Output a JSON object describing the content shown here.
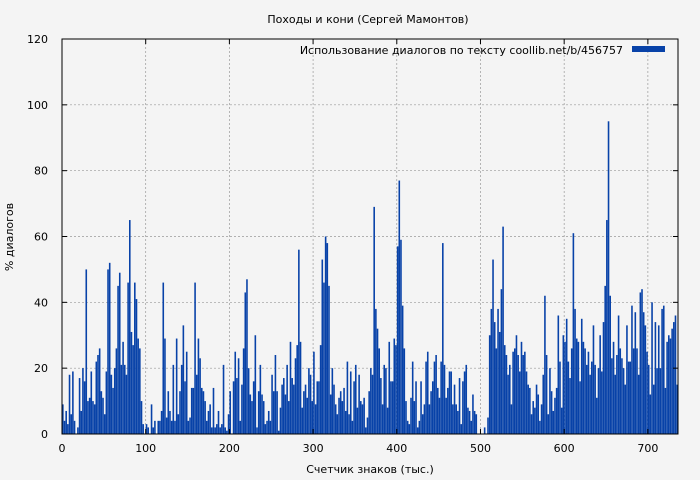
{
  "chart_data": {
    "type": "bar",
    "title": "Походы и кони (Сергей Мамонтов)",
    "xlabel": "Счетчик знаков (тыс.)",
    "ylabel": "% диалогов",
    "xlim": [
      0,
      736
    ],
    "ylim": [
      0,
      120
    ],
    "xticks": [
      "0",
      "100",
      "200",
      "300",
      "400",
      "500",
      "600",
      "700"
    ],
    "yticks": [
      "0",
      "20",
      "40",
      "60",
      "80",
      "100",
      "120"
    ],
    "grid": true,
    "legend": "top-right",
    "colors": {
      "bar": "#0842a8",
      "background": "#f4f4f4",
      "grid": "#999999"
    },
    "series": [
      {
        "name": "Использование диалогов по тексту  coollib.net/b/456757",
        "x": [
          1,
          3,
          5,
          7,
          9,
          11,
          13,
          15,
          17,
          19,
          21,
          23,
          25,
          27,
          29,
          31,
          33,
          35,
          37,
          39,
          41,
          43,
          45,
          47,
          49,
          51,
          53,
          55,
          57,
          59,
          61,
          63,
          65,
          67,
          69,
          71,
          73,
          75,
          77,
          79,
          81,
          83,
          85,
          87,
          89,
          91,
          93,
          95,
          97,
          99,
          101,
          103,
          105,
          107,
          109,
          111,
          113,
          115,
          117,
          119,
          121,
          123,
          125,
          127,
          129,
          131,
          133,
          135,
          137,
          139,
          141,
          143,
          145,
          147,
          149,
          151,
          153,
          155,
          157,
          159,
          161,
          163,
          165,
          167,
          169,
          171,
          173,
          175,
          177,
          179,
          181,
          183,
          185,
          187,
          189,
          191,
          193,
          195,
          197,
          199,
          201,
          203,
          205,
          207,
          209,
          211,
          213,
          215,
          217,
          219,
          221,
          223,
          225,
          227,
          229,
          231,
          233,
          235,
          237,
          239,
          241,
          243,
          245,
          247,
          249,
          251,
          253,
          255,
          257,
          259,
          261,
          263,
          265,
          267,
          269,
          271,
          273,
          275,
          277,
          279,
          281,
          283,
          285,
          287,
          289,
          291,
          293,
          295,
          297,
          299,
          301,
          303,
          305,
          307,
          309,
          311,
          313,
          315,
          317,
          319,
          321,
          323,
          325,
          327,
          329,
          331,
          333,
          335,
          337,
          339,
          341,
          343,
          345,
          347,
          349,
          351,
          353,
          355,
          357,
          359,
          361,
          363,
          365,
          367,
          369,
          371,
          373,
          375,
          377,
          379,
          381,
          383,
          385,
          387,
          389,
          391,
          393,
          395,
          397,
          399,
          401,
          403,
          405,
          407,
          409,
          411,
          413,
          415,
          417,
          419,
          421,
          423,
          425,
          427,
          429,
          431,
          433,
          435,
          437,
          439,
          441,
          443,
          445,
          447,
          449,
          451,
          453,
          455,
          457,
          459,
          461,
          463,
          465,
          467,
          469,
          471,
          473,
          475,
          477,
          479,
          481,
          483,
          485,
          487,
          489,
          491,
          493,
          495,
          497,
          499,
          501,
          503,
          505,
          507,
          509,
          511,
          513,
          515,
          517,
          519,
          521,
          523,
          525,
          527,
          529,
          531,
          533,
          535,
          537,
          539,
          541,
          543,
          545,
          547,
          549,
          551,
          553,
          555,
          557,
          559,
          561,
          563,
          565,
          567,
          569,
          571,
          573,
          575,
          577,
          579,
          581,
          583,
          585,
          587,
          589,
          591,
          593,
          595,
          597,
          599,
          601,
          603,
          605,
          607,
          609,
          611,
          613,
          615,
          617,
          619,
          621,
          623,
          625,
          627,
          629,
          631,
          633,
          635,
          637,
          639,
          641,
          643,
          645,
          647,
          649,
          651,
          653,
          655,
          657,
          659,
          661,
          663,
          665,
          667,
          669,
          671,
          673,
          675,
          677,
          679,
          681,
          683,
          685,
          687,
          689,
          691,
          693,
          695,
          697,
          699,
          701,
          703,
          705,
          707,
          709,
          711,
          713,
          715,
          717,
          719,
          721,
          723,
          725,
          727,
          729,
          731,
          733,
          735
        ],
        "values": [
          9,
          4,
          7,
          3,
          18,
          6,
          19,
          4,
          0,
          2,
          17,
          7,
          20,
          16,
          50,
          10,
          11,
          19,
          10,
          9,
          22,
          24,
          26,
          13,
          11,
          6,
          19,
          50,
          52,
          18,
          14,
          20,
          26,
          45,
          49,
          21,
          28,
          21,
          18,
          46,
          65,
          31,
          27,
          46,
          41,
          29,
          26,
          10,
          3,
          0,
          3,
          2,
          0,
          9,
          2,
          4,
          0,
          4,
          4,
          7,
          46,
          29,
          5,
          13,
          7,
          4,
          21,
          4,
          29,
          6,
          13,
          21,
          33,
          16,
          25,
          4,
          5,
          14,
          14,
          46,
          18,
          29,
          23,
          14,
          13,
          10,
          4,
          7,
          9,
          2,
          14,
          2,
          3,
          7,
          2,
          3,
          21,
          2,
          1,
          6,
          13,
          0,
          16,
          25,
          17,
          23,
          4,
          15,
          26,
          43,
          47,
          20,
          12,
          10,
          16,
          30,
          2,
          13,
          21,
          12,
          10,
          3,
          4,
          7,
          4,
          18,
          13,
          24,
          13,
          1,
          8,
          15,
          17,
          12,
          21,
          10,
          28,
          17,
          15,
          23,
          27,
          56,
          28,
          8,
          13,
          15,
          11,
          20,
          18,
          10,
          25,
          9,
          16,
          16,
          27,
          53,
          46,
          60,
          58,
          45,
          12,
          20,
          15,
          9,
          6,
          11,
          13,
          10,
          14,
          7,
          22,
          6,
          19,
          4,
          16,
          21,
          8,
          18,
          10,
          9,
          11,
          2,
          5,
          13,
          20,
          18,
          69,
          38,
          32,
          26,
          17,
          9,
          21,
          20,
          8,
          28,
          16,
          16,
          29,
          27,
          57,
          77,
          59,
          39,
          26,
          10,
          4,
          3,
          11,
          22,
          10,
          16,
          2,
          4,
          16,
          6,
          9,
          22,
          25,
          9,
          13,
          16,
          22,
          24,
          14,
          11,
          22,
          58,
          21,
          11,
          14,
          19,
          19,
          9,
          15,
          9,
          7,
          17,
          3,
          16,
          19,
          21,
          8,
          7,
          4,
          12,
          7,
          6,
          0,
          0,
          0,
          0,
          2,
          0,
          5,
          30,
          38,
          53,
          34,
          26,
          38,
          31,
          44,
          63,
          27,
          24,
          18,
          21,
          9,
          25,
          26,
          30,
          24,
          19,
          28,
          24,
          25,
          19,
          15,
          14,
          6,
          10,
          8,
          15,
          12,
          4,
          9,
          18,
          42,
          24,
          6,
          20,
          13,
          7,
          11,
          14,
          36,
          22,
          8,
          30,
          28,
          35,
          22,
          17,
          26,
          61,
          38,
          29,
          28,
          16,
          35,
          28,
          26,
          21,
          25,
          18,
          22,
          33,
          21,
          11,
          20,
          30,
          19,
          34,
          45,
          65,
          95,
          42,
          23,
          28,
          18,
          24,
          36,
          26,
          23,
          20,
          15,
          33,
          22,
          22,
          39,
          26,
          37,
          26,
          18,
          43,
          44,
          37,
          33,
          25,
          21,
          12,
          40,
          15,
          34,
          20,
          33,
          20,
          38,
          39,
          14,
          28,
          30,
          29,
          32,
          34,
          36,
          15
        ]
      }
    ]
  }
}
